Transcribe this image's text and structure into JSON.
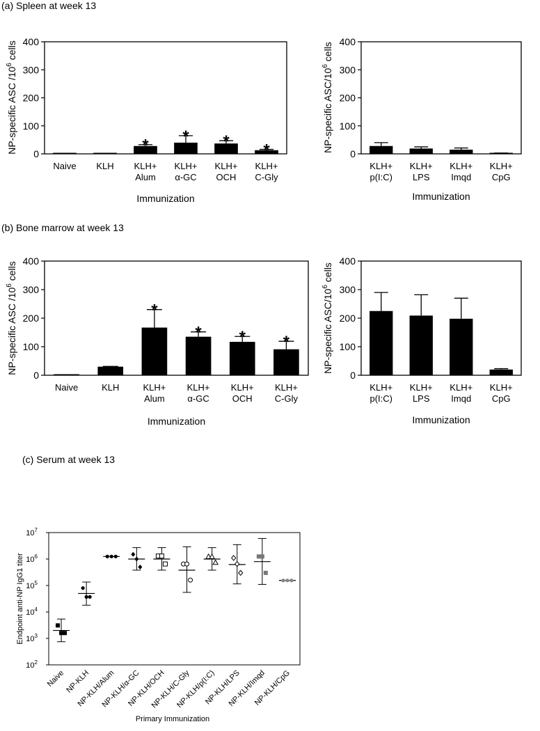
{
  "section_titles": {
    "a": "(a) Spleen at week 13",
    "b": "(b) Bone marrow at week 13",
    "c": "(c) Serum at week 13"
  },
  "chart_data": [
    {
      "id": "a1",
      "type": "bar",
      "panel": "(a)",
      "categories": [
        [
          "Naive"
        ],
        [
          "KLH"
        ],
        [
          "KLH+",
          "Alum"
        ],
        [
          "KLH+",
          "α-GC"
        ],
        [
          "KLH+",
          "OCH"
        ],
        [
          "KLH+",
          "C-Gly"
        ]
      ],
      "values": [
        0,
        0,
        28,
        40,
        37,
        13
      ],
      "errors": [
        0,
        0,
        5,
        25,
        10,
        3
      ],
      "significant": [
        false,
        false,
        true,
        true,
        true,
        true
      ],
      "significance_marker": "*",
      "ylabel": [
        "NP-specific ASC /10",
        "6",
        " cells"
      ],
      "xlabel": "Immunization",
      "ylim": [
        0,
        400
      ],
      "yticks": [
        0,
        100,
        200,
        300,
        400
      ]
    },
    {
      "id": "a2",
      "type": "bar",
      "panel": "(a)",
      "categories": [
        [
          "KLH+",
          "p(I:C)"
        ],
        [
          "KLH+",
          "LPS"
        ],
        [
          "KLH+",
          "Imqd"
        ],
        [
          "KLH+",
          "CpG"
        ]
      ],
      "values": [
        28,
        19,
        15,
        2
      ],
      "errors": [
        12,
        6,
        6,
        1
      ],
      "significant": [
        false,
        false,
        false,
        false
      ],
      "significance_marker": "*",
      "ylabel": [
        "NP-specific ASC/10",
        "6",
        " cells"
      ],
      "xlabel": "Immunization",
      "ylim": [
        0,
        400
      ],
      "yticks": [
        0,
        100,
        200,
        300,
        400
      ]
    },
    {
      "id": "b1",
      "type": "bar",
      "panel": "(b)",
      "categories": [
        [
          "Naive"
        ],
        [
          "KLH"
        ],
        [
          "KLH+",
          "Alum"
        ],
        [
          "KLH+",
          "α-GC"
        ],
        [
          "KLH+",
          "OCH"
        ],
        [
          "KLH+",
          "C-Gly"
        ]
      ],
      "values": [
        0,
        30,
        167,
        135,
        117,
        91
      ],
      "errors": [
        0,
        1,
        63,
        17,
        19,
        28
      ],
      "significant": [
        false,
        false,
        true,
        true,
        true,
        true
      ],
      "significance_marker": "*",
      "ylabel": [
        "NP-specific ASC /10",
        "6",
        " cells"
      ],
      "xlabel": "Immunization",
      "ylim": [
        0,
        400
      ],
      "yticks": [
        0,
        100,
        200,
        300,
        400
      ]
    },
    {
      "id": "b2",
      "type": "bar",
      "panel": "(b)",
      "categories": [
        [
          "KLH+",
          "p(I:C)"
        ],
        [
          "KLH+",
          "LPS"
        ],
        [
          "KLH+",
          "Imqd"
        ],
        [
          "KLH+",
          "CpG"
        ]
      ],
      "values": [
        225,
        209,
        198,
        20
      ],
      "errors": [
        65,
        73,
        72,
        3
      ],
      "significant": [
        false,
        false,
        false,
        false
      ],
      "significance_marker": "*",
      "ylabel": [
        "NP-specific ASC/10",
        "6",
        " cells"
      ],
      "xlabel": "Immunization",
      "ylim": [
        0,
        400
      ],
      "yticks": [
        0,
        100,
        200,
        300,
        400
      ]
    },
    {
      "id": "c",
      "type": "scatter",
      "panel": "(c)",
      "yscale": "log",
      "categories": [
        "Naive",
        "NP-KLH",
        "NP-KLH/Alum",
        "NP-KLH/α-GC",
        "NP-KLH/OCH",
        "NP-KLH/C-Gly",
        "NP-KLH/p(I:C)",
        "NP-KLH/LPS",
        "NP-KLH/Imqd",
        "NP-KLH/CpG"
      ],
      "groups": [
        {
          "marker": "square",
          "color": "#000000",
          "points": [
            3100,
            1600,
            1600
          ],
          "mean": 2000,
          "err": [
            750,
            5400
          ]
        },
        {
          "marker": "dot",
          "color": "#000000",
          "points": [
            80000,
            37000,
            37000
          ],
          "mean": 50000,
          "err": [
            18000,
            135000
          ]
        },
        {
          "marker": "dot",
          "color": "#000000",
          "points": [
            1250000,
            1250000,
            1250000
          ],
          "mean": 1250000,
          "err": [
            1250000,
            1250000
          ]
        },
        {
          "marker": "diamond",
          "color": "#000000",
          "points": [
            1500000,
            1000000,
            500000
          ],
          "mean": 1000000,
          "err": [
            380000,
            2700000
          ]
        },
        {
          "marker": "opensquare",
          "color": "#000000",
          "points": [
            1300000,
            1300000,
            650000
          ],
          "mean": 1000000,
          "err": [
            380000,
            2700000
          ]
        },
        {
          "marker": "circle",
          "color": "#000000",
          "points": [
            650000,
            650000,
            160000
          ],
          "mean": 380000,
          "err": [
            55000,
            2900000
          ]
        },
        {
          "marker": "triangle",
          "color": "#000000",
          "points": [
            1250000,
            1250000,
            750000
          ],
          "mean": 1000000,
          "err": [
            380000,
            2700000
          ]
        },
        {
          "marker": "opendiamond",
          "color": "#000000",
          "points": [
            1100000,
            650000,
            300000
          ],
          "mean": 620000,
          "err": [
            115000,
            3500000
          ]
        },
        {
          "marker": "square",
          "color": "#777777",
          "points": [
            1250000,
            1250000,
            300000
          ],
          "mean": 800000,
          "err": [
            110000,
            6000000
          ]
        },
        {
          "marker": "dot",
          "color": "#888888",
          "points": [
            155000,
            155000,
            155000
          ],
          "mean": 155000,
          "err": [
            155000,
            155000
          ]
        }
      ],
      "ylabel": "Endpoint anti-NP IgG1 titer",
      "xlabel": "Primary Immunization",
      "yticks": [
        "10",
        "10",
        "10",
        "10",
        "10",
        "10"
      ],
      "ytick_exponents": [
        "2",
        "3",
        "4",
        "5",
        "6",
        "7"
      ],
      "ylim_log10": [
        2,
        7
      ]
    }
  ]
}
